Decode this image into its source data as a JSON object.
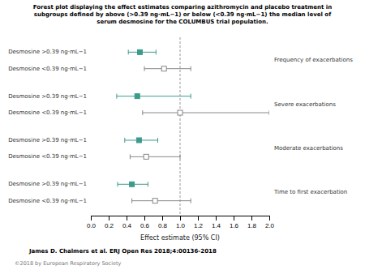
{
  "chart_data": {
    "type": "forest",
    "title": [
      "Forest plot displaying the effect estimates comparing azithromycin and placebo treatment in",
      "subgroups defined by above (>0.39 ng·mL−1) or below (<0.39 ng·mL−1) the median level of",
      "serum desmosine for the COLUMBUS trial population."
    ],
    "xlabel": "Effect estimate (95% CI)",
    "annotations": [
      "James D. Chalmers et al. ERJ Open Res 2018;4:00136-2018",
      "©2018 by European Respiratory Society"
    ],
    "categories": [
      "Frequency of exacerbations",
      "Severe exacerbations",
      "Moderate exacerbations",
      "Time to first exacerbation"
    ],
    "series": [
      {
        "name": "Desmosine >0.39 ng·mL−1",
        "color": "#3d9b8c",
        "marker": "square",
        "values": [
          0.55,
          0.52,
          0.54,
          0.46
        ],
        "lo": [
          0.42,
          0.29,
          0.38,
          0.3
        ],
        "hi": [
          0.73,
          1.12,
          0.75,
          0.64
        ]
      },
      {
        "name": "Desmosine <0.39 ng·mL−1",
        "color": "#888888",
        "marker": "square-open",
        "values": [
          0.82,
          1.0,
          0.62,
          0.72
        ],
        "lo": [
          0.6,
          0.58,
          0.44,
          0.46
        ],
        "hi": [
          1.12,
          2.0,
          1.0,
          1.12
        ]
      }
    ],
    "reference_line": 1.0,
    "xlim": [
      0.0,
      2.0
    ],
    "xticks": [
      {
        "value": 0.0,
        "label": "0.0"
      },
      0.2,
      0.4,
      0.6,
      0.8,
      {
        "value": 1.0,
        "label": "1.0"
      },
      1.2,
      1.4,
      1.6,
      1.8,
      {
        "value": 2.0,
        "label": "2.0"
      }
    ],
    "grid": false
  }
}
